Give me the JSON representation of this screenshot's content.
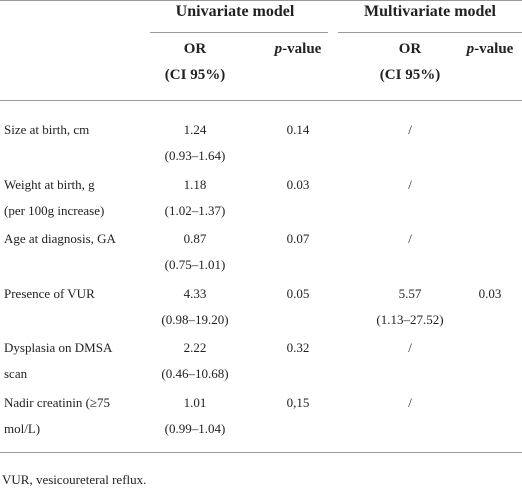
{
  "table": {
    "groups": [
      "Univariate model",
      "Multivariate model"
    ],
    "subheaders": [
      {
        "lines": [
          "OR",
          "(CI 95%)"
        ]
      },
      {
        "italic": "p",
        "text": "-value"
      },
      {
        "lines": [
          "OR",
          "(CI 95%)"
        ]
      },
      {
        "italic": "p",
        "text": "-value"
      }
    ],
    "rows": [
      {
        "label": [
          "Size at birth, cm"
        ],
        "uni_or": [
          "1.24",
          "(0.93–1.64)"
        ],
        "uni_p": "0.14",
        "multi_or": [
          "/"
        ]
      },
      {
        "label": [
          "Weight at birth, g",
          "(per 100g increase)"
        ],
        "uni_or": [
          "1.18",
          "(1.02–1.37)"
        ],
        "uni_p": "0.03",
        "multi_or": [
          "/"
        ]
      },
      {
        "label": [
          "Age at diagnosis, GA"
        ],
        "uni_or": [
          "0.87",
          "(0.75–1.01)"
        ],
        "uni_p": "0.07",
        "multi_or": [
          "/"
        ]
      },
      {
        "label": [
          "Presence of VUR"
        ],
        "uni_or": [
          "4.33",
          "(0.98–19.20)"
        ],
        "uni_p": "0.05",
        "multi_or": [
          "5.57",
          "(1.13–27.52)"
        ],
        "multi_p": "0.03"
      },
      {
        "label": [
          "Dysplasia on DMSA",
          "scan"
        ],
        "uni_or": [
          "2.22",
          "(0.46–10.68)"
        ],
        "uni_p": "0.32",
        "multi_or": [
          "/"
        ]
      },
      {
        "label": [
          "Nadir creatinin (≥75",
          "mol/L)"
        ],
        "uni_or": [
          "1.01",
          "(0.99–1.04)"
        ],
        "uni_p": "0,15",
        "multi_or": [
          "/"
        ]
      }
    ],
    "footnote": "VUR, vesicoureteral reflux."
  }
}
